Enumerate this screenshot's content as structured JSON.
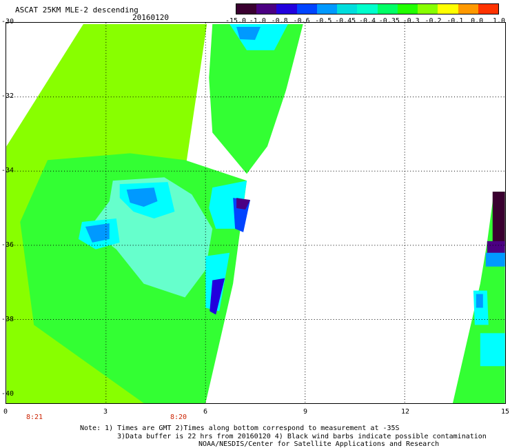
{
  "header": {
    "title": "ASCAT 25KM MLE-2 descending",
    "date": "20160120"
  },
  "colorbar": {
    "labels": [
      "-15.0",
      "-1.0",
      "-0.8",
      "-0.6",
      "-0.5",
      "-0.45",
      "-0.4",
      "-0.35",
      "-0.3",
      "-0.2",
      "-0.1",
      "0.0",
      "1.0"
    ],
    "colors": [
      "#3a0030",
      "#4b0082",
      "#2200dd",
      "#0044ff",
      "#0099ff",
      "#00dddd",
      "#00ffcc",
      "#00ff66",
      "#22ff00",
      "#88ff00",
      "#ffff00",
      "#ff9900",
      "#ff3300"
    ]
  },
  "axes": {
    "y_labels": [
      "-30",
      "-32",
      "-34",
      "-36",
      "-38",
      "-40"
    ],
    "x_labels": [
      "0",
      "3",
      "6",
      "9",
      "12",
      "15"
    ],
    "time_labels": [
      "8:21",
      "8:20"
    ],
    "x_range": [
      0,
      15
    ],
    "y_range": [
      -40,
      -30
    ]
  },
  "colors": {
    "dark_purple": "#3a0030",
    "indigo": "#4b0082",
    "blue": "#2200dd",
    "cyan": "#00ffff",
    "green": "#33ff33",
    "yellow_green": "#88ff00"
  },
  "notes": {
    "line1": "Note: 1) Times are GMT 2)Times along bottom correspond to measurement at -35S",
    "line2": "3)Data buffer is 22 hrs from 20160120 4) Black wind barbs indicate possible contamination",
    "line3": "NOAA/NESDIS/Center for Satellite Applications and Research"
  }
}
